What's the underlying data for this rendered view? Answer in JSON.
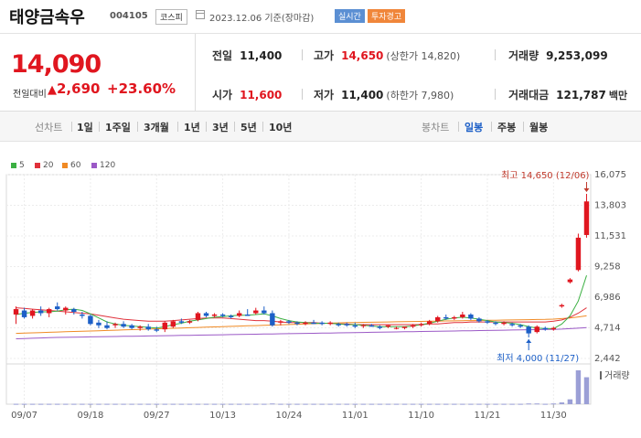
{
  "header": {
    "name": "태양금속우",
    "code": "004105",
    "market": "코스피",
    "date": "2023.12.06 기준(장마감)",
    "badge_realtime": "실시간",
    "badge_warning": "투자경고"
  },
  "summary": {
    "price": "14,090",
    "change_label": "전일대비",
    "change_abs": "2,690",
    "change_pct": "+23.60%",
    "prev_close_label": "전일",
    "prev_close": "11,400",
    "high_label": "고가",
    "high": "14,650",
    "upper_limit": "(상한가 14,820)",
    "volume_label": "거래량",
    "volume": "9,253,099",
    "open_label": "시가",
    "open": "11,600",
    "low_label": "저가",
    "low": "11,400",
    "lower_limit": "(하한가 7,980)",
    "amount_label": "거래대금",
    "amount": "121,787",
    "amount_unit": "백만"
  },
  "tabs": {
    "line_chart": "선차트",
    "periods": [
      "1일",
      "1주일",
      "3개월",
      "1년",
      "3년",
      "5년",
      "10년"
    ],
    "candle_chart": "봉차트",
    "candle_periods": [
      "일봉",
      "주봉",
      "월봉"
    ],
    "active_candle": "일봉"
  },
  "legend": [
    {
      "label": "5",
      "color": "#3cb043"
    },
    {
      "label": "20",
      "color": "#e0313b"
    },
    {
      "label": "60",
      "color": "#f08a24"
    },
    {
      "label": "120",
      "color": "#9b59c6"
    }
  ],
  "colors": {
    "up": "#e0161f",
    "down": "#1c5fc7"
  },
  "chart_data": {
    "type": "candlestick",
    "y_ticks": [
      "16,075",
      "13,803",
      "11,531",
      "9,258",
      "6,986",
      "4,714",
      "2,442"
    ],
    "y_tick_values": [
      16075,
      13803,
      11531,
      9258,
      6986,
      4714,
      2442
    ],
    "ylim": [
      2442,
      16075
    ],
    "x_ticks": [
      "09/07",
      "09/18",
      "09/27",
      "10/13",
      "10/24",
      "11/01",
      "11/10",
      "11/21",
      "11/30"
    ],
    "x_tick_index": [
      1,
      9,
      17,
      25,
      33,
      41,
      49,
      57,
      65
    ],
    "max_annotation": "최고 14,650 (12/06)",
    "min_annotation": "최저 4,000 (11/27)",
    "max_index": 69,
    "min_index": 62,
    "volume_label": "거래량",
    "candles": [
      [
        5700,
        6300,
        5000,
        6100
      ],
      [
        6000,
        6200,
        5400,
        5500
      ],
      [
        5600,
        6100,
        5400,
        6000
      ],
      [
        6000,
        6300,
        5600,
        5800
      ],
      [
        5800,
        6200,
        5500,
        6100
      ],
      [
        6300,
        6600,
        6000,
        6100
      ],
      [
        6000,
        6300,
        5700,
        6200
      ],
      [
        6100,
        6200,
        5700,
        5900
      ],
      [
        5700,
        5900,
        5400,
        5600
      ],
      [
        5600,
        5700,
        4900,
        5000
      ],
      [
        5100,
        5300,
        4700,
        4900
      ],
      [
        4900,
        5200,
        4600,
        4700
      ],
      [
        4900,
        5100,
        4700,
        5000
      ],
      [
        5000,
        5200,
        4700,
        4800
      ],
      [
        4900,
        5000,
        4600,
        4700
      ],
      [
        4700,
        4900,
        4500,
        4800
      ],
      [
        4800,
        5000,
        4500,
        4600
      ],
      [
        4600,
        4800,
        4400,
        4500
      ],
      [
        4600,
        5200,
        4400,
        5100
      ],
      [
        4800,
        5300,
        4700,
        5200
      ],
      [
        5200,
        5400,
        5000,
        5100
      ],
      [
        5100,
        5300,
        5000,
        5200
      ],
      [
        5300,
        5900,
        5200,
        5800
      ],
      [
        5800,
        5900,
        5500,
        5600
      ],
      [
        5600,
        5800,
        5500,
        5700
      ],
      [
        5700,
        5800,
        5500,
        5600
      ],
      [
        5600,
        5700,
        5400,
        5500
      ],
      [
        5600,
        6000,
        5500,
        5800
      ],
      [
        5700,
        6100,
        5600,
        5600
      ],
      [
        5800,
        6200,
        5700,
        6000
      ],
      [
        6000,
        6300,
        5700,
        5800
      ],
      [
        5800,
        6000,
        4800,
        4900
      ],
      [
        5100,
        5300,
        4900,
        5200
      ],
      [
        5200,
        5300,
        5000,
        5100
      ],
      [
        5100,
        5200,
        4900,
        5000
      ],
      [
        5000,
        5200,
        4900,
        5100
      ],
      [
        5100,
        5300,
        5000,
        5000
      ],
      [
        5100,
        5200,
        4900,
        5000
      ],
      [
        5000,
        5200,
        4900,
        5100
      ],
      [
        5000,
        5100,
        4800,
        4900
      ],
      [
        5000,
        5100,
        4800,
        4900
      ],
      [
        4900,
        5100,
        4700,
        4800
      ],
      [
        4900,
        5000,
        4700,
        4900
      ],
      [
        4900,
        5000,
        4800,
        4800
      ],
      [
        4800,
        4900,
        4600,
        4700
      ],
      [
        4800,
        4900,
        4700,
        4900
      ],
      [
        4700,
        4800,
        4600,
        4700
      ],
      [
        4700,
        4800,
        4600,
        4800
      ],
      [
        4800,
        5000,
        4700,
        4900
      ],
      [
        4900,
        5100,
        4800,
        5000
      ],
      [
        5000,
        5300,
        4900,
        5200
      ],
      [
        5200,
        5600,
        5100,
        5500
      ],
      [
        5500,
        5700,
        5300,
        5400
      ],
      [
        5400,
        5600,
        5300,
        5500
      ],
      [
        5500,
        5900,
        5400,
        5700
      ],
      [
        5700,
        5800,
        5300,
        5400
      ],
      [
        5400,
        5500,
        5100,
        5200
      ],
      [
        5200,
        5300,
        5000,
        5100
      ],
      [
        5100,
        5200,
        4900,
        5000
      ],
      [
        5000,
        5200,
        4900,
        5100
      ],
      [
        5000,
        5100,
        4800,
        4900
      ],
      [
        4900,
        5000,
        4700,
        4800
      ],
      [
        4800,
        4900,
        4000,
        4300
      ],
      [
        4400,
        4900,
        4300,
        4800
      ],
      [
        4700,
        4800,
        4500,
        4600
      ],
      [
        4600,
        4800,
        4500,
        4700
      ],
      [
        6300,
        6500,
        6200,
        6400
      ],
      [
        8100,
        8400,
        8000,
        8300
      ],
      [
        9000,
        11700,
        8900,
        11400
      ],
      [
        11600,
        14650,
        11400,
        14090
      ]
    ],
    "volumes": [
      1,
      1,
      1,
      1,
      1,
      1,
      1,
      1,
      1,
      1,
      1,
      1,
      1,
      1,
      1,
      1,
      1,
      1,
      1,
      1,
      1,
      1,
      1,
      1,
      1,
      1,
      1,
      1,
      1,
      1,
      1,
      2,
      1,
      1,
      1,
      1,
      1,
      1,
      1,
      1,
      1,
      1,
      1,
      1,
      1,
      1,
      1,
      1,
      1,
      1,
      1,
      1,
      1,
      1,
      1,
      1,
      1,
      1,
      1,
      1,
      1,
      1,
      2,
      2,
      1,
      2,
      5,
      14,
      98,
      78
    ],
    "ma5": [
      5700,
      5800,
      5850,
      5900,
      5900,
      5950,
      6050,
      6100,
      6000,
      5750,
      5450,
      5150,
      5000,
      4900,
      4850,
      4800,
      4750,
      4700,
      4800,
      4950,
      5050,
      5200,
      5300,
      5400,
      5500,
      5550,
      5600,
      5650,
      5650,
      5700,
      5750,
      5600,
      5400,
      5250,
      5150,
      5100,
      5050,
      5050,
      5050,
      5000,
      4950,
      4950,
      4900,
      4850,
      4800,
      4800,
      4800,
      4800,
      4850,
      4950,
      5050,
      5200,
      5350,
      5450,
      5500,
      5450,
      5350,
      5250,
      5150,
      5100,
      5050,
      4950,
      4800,
      4700,
      4650,
      4650,
      5000,
      5600,
      6700,
      8600
    ],
    "ma20": [
      6200,
      6150,
      6100,
      6050,
      6000,
      5950,
      5900,
      5850,
      5800,
      5750,
      5650,
      5550,
      5450,
      5350,
      5300,
      5250,
      5200,
      5200,
      5200,
      5250,
      5300,
      5350,
      5400,
      5450,
      5450,
      5450,
      5400,
      5350,
      5300,
      5250,
      5250,
      5200,
      5150,
      5100,
      5100,
      5100,
      5100,
      5050,
      5050,
      5000,
      5000,
      4950,
      4950,
      4950,
      4950,
      4950,
      4950,
      4950,
      4950,
      4950,
      5000,
      5000,
      5050,
      5100,
      5100,
      5150,
      5150,
      5150,
      5150,
      5150,
      5150,
      5150,
      5150,
      5150,
      5150,
      5200,
      5300,
      5500,
      5800,
      6200
    ],
    "ma60": [
      4300,
      4320,
      4340,
      4360,
      4380,
      4400,
      4420,
      4440,
      4460,
      4480,
      4500,
      4520,
      4540,
      4560,
      4580,
      4600,
      4620,
      4640,
      4660,
      4680,
      4700,
      4720,
      4740,
      4760,
      4780,
      4800,
      4820,
      4840,
      4860,
      4880,
      4900,
      4920,
      4940,
      4960,
      4980,
      5000,
      5020,
      5040,
      5060,
      5080,
      5100,
      5110,
      5120,
      5130,
      5140,
      5150,
      5160,
      5170,
      5180,
      5190,
      5200,
      5210,
      5220,
      5230,
      5240,
      5250,
      5260,
      5270,
      5280,
      5290,
      5300,
      5310,
      5320,
      5330,
      5340,
      5360,
      5400,
      5450,
      5520,
      5600
    ],
    "ma120": [
      3900,
      3920,
      3940,
      3960,
      3980,
      4000,
      4010,
      4020,
      4030,
      4040,
      4050,
      4060,
      4070,
      4080,
      4090,
      4100,
      4110,
      4120,
      4130,
      4140,
      4150,
      4160,
      4170,
      4180,
      4190,
      4200,
      4210,
      4220,
      4230,
      4240,
      4250,
      4260,
      4270,
      4280,
      4290,
      4300,
      4310,
      4320,
      4330,
      4340,
      4350,
      4360,
      4370,
      4380,
      4390,
      4400,
      4410,
      4420,
      4430,
      4440,
      4450,
      4460,
      4470,
      4480,
      4490,
      4500,
      4510,
      4520,
      4530,
      4540,
      4550,
      4560,
      4570,
      4580,
      4590,
      4600,
      4620,
      4650,
      4690,
      4730
    ]
  }
}
